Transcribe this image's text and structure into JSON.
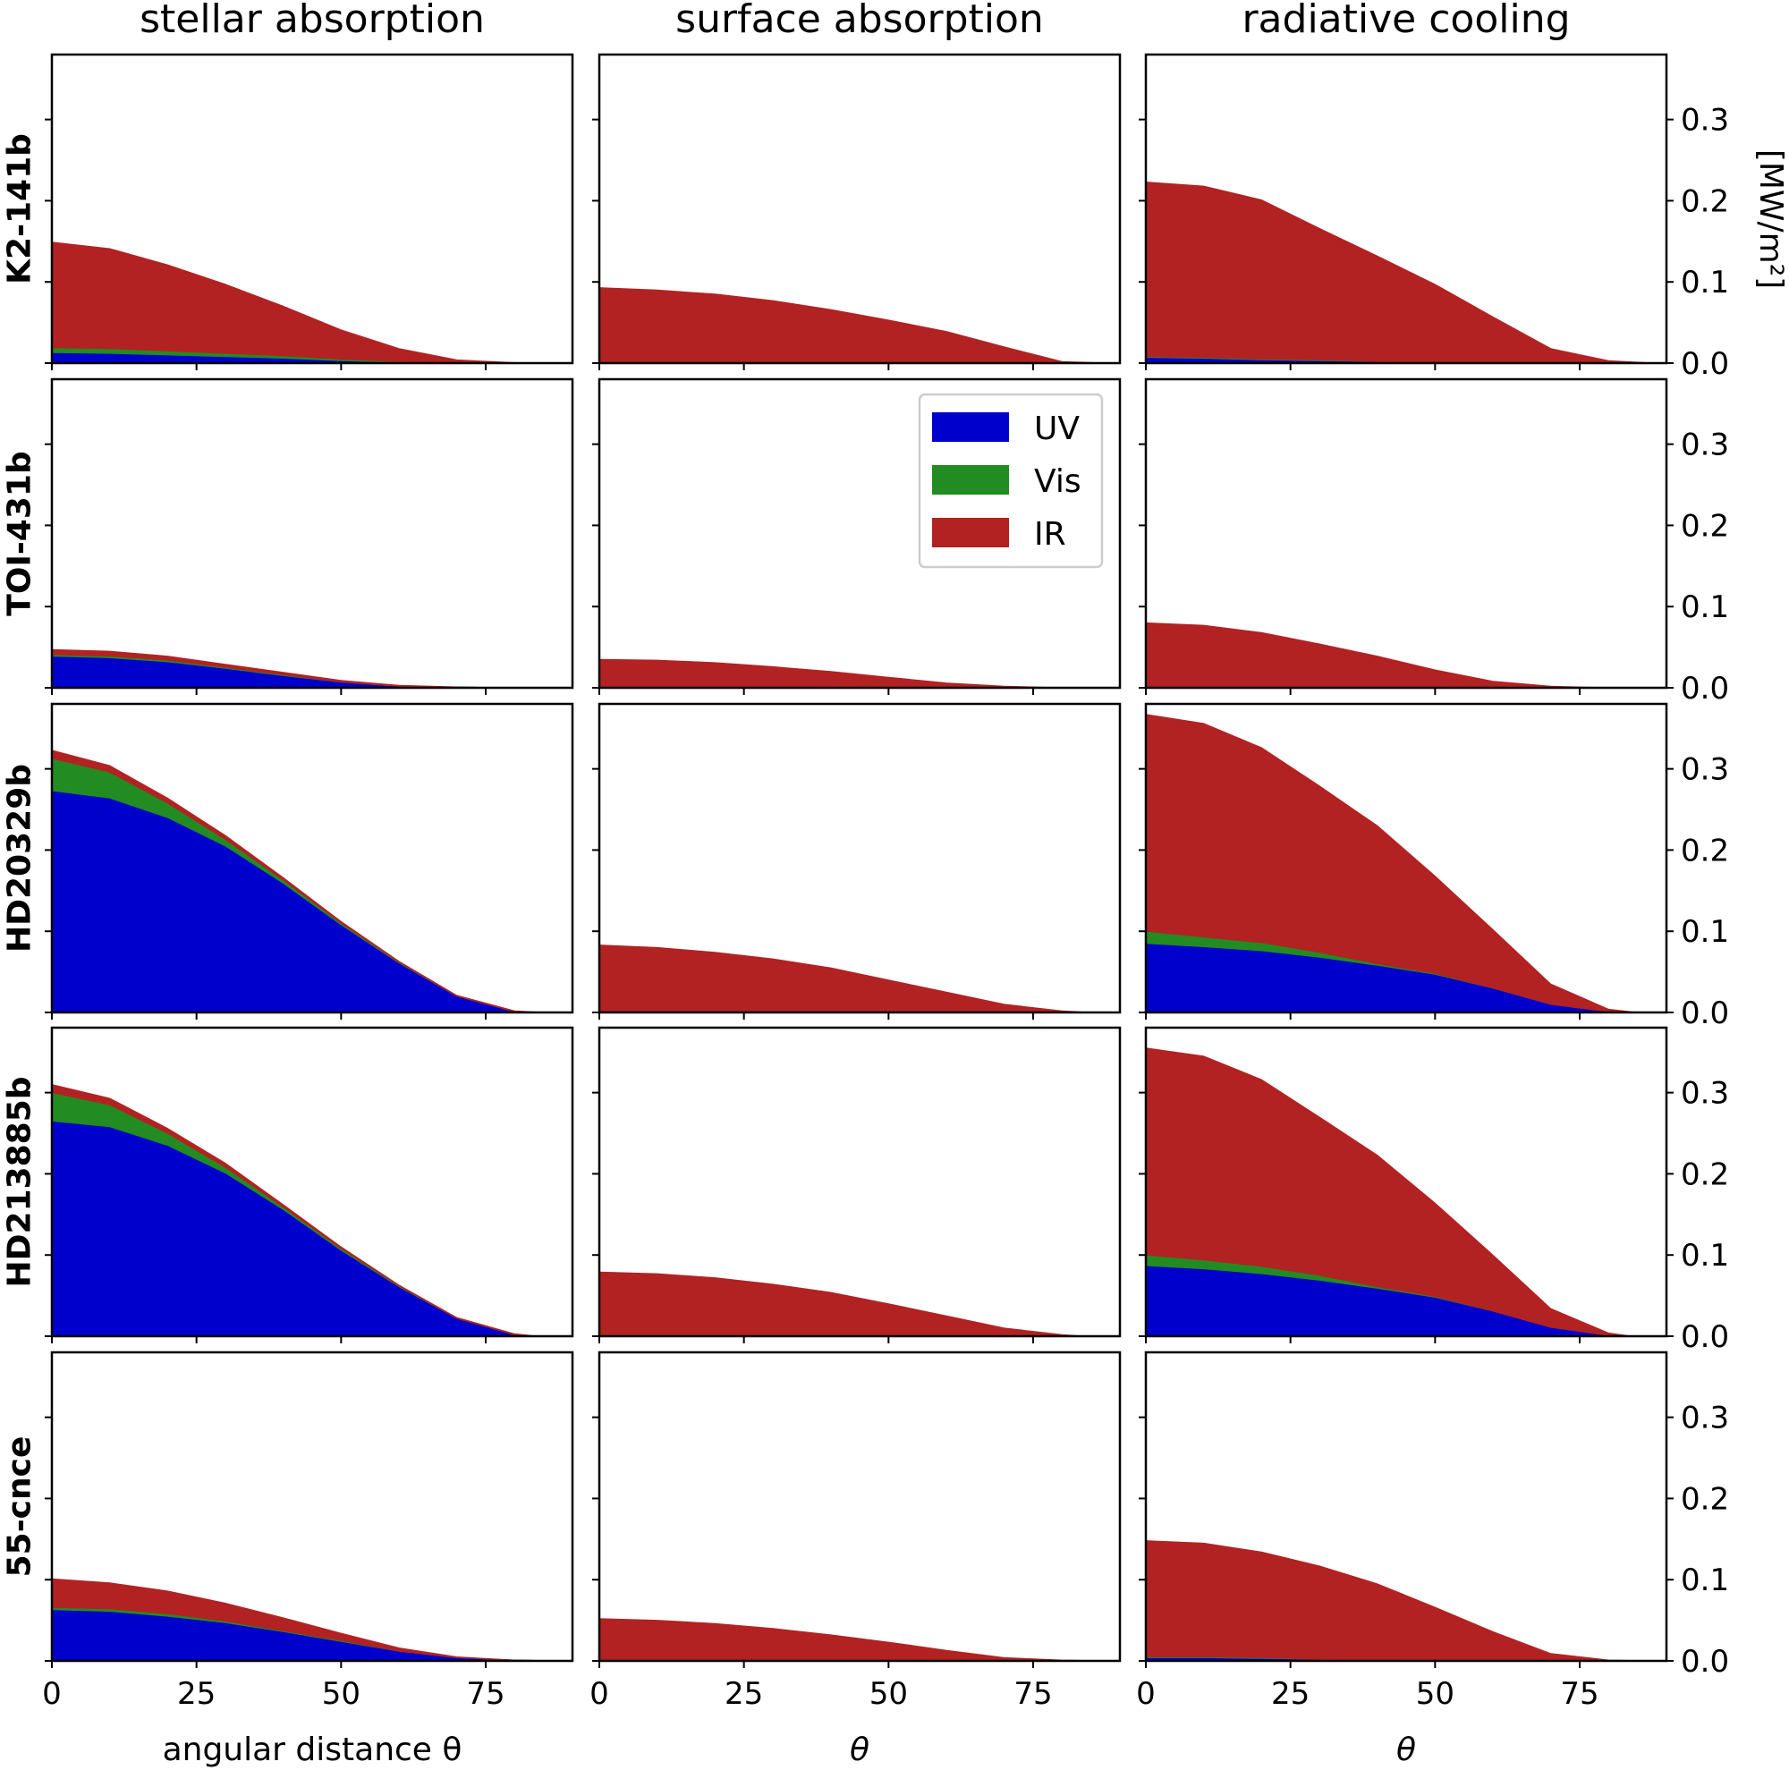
{
  "chart_data": {
    "type": "area",
    "layout": "grid 5 rows x 3 columns, shared axes",
    "columns": [
      "stellar absorption",
      "surface absorption",
      "radiative cooling"
    ],
    "rows": [
      "K2-141b",
      "TOI-431b",
      "HD20329b",
      "HD213885b",
      "55-cnce"
    ],
    "xlabels": [
      "angular distance θ",
      "θ",
      "θ"
    ],
    "ylabel": "[MW/m²]",
    "xlim": [
      0,
      90
    ],
    "ylim": [
      0,
      0.38
    ],
    "xticks": [
      "0",
      "25",
      "50",
      "75"
    ],
    "yticks": [
      "0.0",
      "0.1",
      "0.2",
      "0.3"
    ],
    "stack_order": [
      "UV",
      "Vis",
      "IR"
    ],
    "legend": [
      {
        "name": "UV",
        "color": "#0000cd"
      },
      {
        "name": "Vis",
        "color": "#228b22"
      },
      {
        "name": "IR",
        "color": "#b22222"
      }
    ],
    "legend_location": "row 2, middle column, upper right",
    "panels": [
      {
        "row": "K2-141b",
        "col": "stellar absorption",
        "theta": [
          0,
          10,
          20,
          30,
          40,
          50,
          60,
          70,
          80,
          88
        ],
        "UV": [
          0.013,
          0.012,
          0.01,
          0.008,
          0.006,
          0.003,
          0.001,
          0.0,
          0.0,
          0.0
        ],
        "Vis": [
          0.006,
          0.006,
          0.005,
          0.004,
          0.003,
          0.002,
          0.001,
          0.0,
          0.0,
          0.0
        ],
        "IR": [
          0.13,
          0.123,
          0.106,
          0.085,
          0.061,
          0.036,
          0.016,
          0.004,
          0.0005,
          0.0
        ]
      },
      {
        "row": "K2-141b",
        "col": "surface absorption",
        "theta": [
          0,
          10,
          20,
          30,
          40,
          50,
          60,
          70,
          80,
          88
        ],
        "UV": [
          0,
          0,
          0,
          0,
          0,
          0,
          0,
          0,
          0,
          0
        ],
        "Vis": [
          0,
          0,
          0,
          0,
          0,
          0,
          0,
          0,
          0,
          0
        ],
        "IR": [
          0.093,
          0.09,
          0.085,
          0.077,
          0.066,
          0.053,
          0.039,
          0.02,
          0.002,
          0.0
        ]
      },
      {
        "row": "K2-141b",
        "col": "radiative cooling",
        "theta": [
          0,
          10,
          20,
          30,
          40,
          50,
          60,
          70,
          80,
          88
        ],
        "UV": [
          0.007,
          0.006,
          0.004,
          0.003,
          0.002,
          0.001,
          0.0,
          0.0,
          0.0,
          0.0
        ],
        "Vis": [
          0.001,
          0.001,
          0.001,
          0.001,
          0.0,
          0.0,
          0.0,
          0.0,
          0.0,
          0.0
        ],
        "IR": [
          0.215,
          0.211,
          0.196,
          0.162,
          0.13,
          0.096,
          0.057,
          0.018,
          0.003,
          0.0
        ]
      },
      {
        "row": "TOI-431b",
        "col": "stellar absorption",
        "theta": [
          0,
          10,
          20,
          30,
          40,
          50,
          60,
          70,
          80,
          88
        ],
        "UV": [
          0.039,
          0.037,
          0.032,
          0.024,
          0.015,
          0.007,
          0.002,
          0.001,
          0.0,
          0.0
        ],
        "Vis": [
          0.002,
          0.002,
          0.002,
          0.001,
          0.001,
          0.0,
          0.0,
          0.0,
          0.0,
          0.0
        ],
        "IR": [
          0.006,
          0.006,
          0.005,
          0.004,
          0.003,
          0.002,
          0.001,
          0.0,
          0.0,
          0.0
        ]
      },
      {
        "row": "TOI-431b",
        "col": "surface absorption",
        "theta": [
          0,
          10,
          20,
          30,
          40,
          50,
          60,
          70,
          80,
          88
        ],
        "UV": [
          0,
          0,
          0,
          0,
          0,
          0,
          0,
          0,
          0,
          0
        ],
        "Vis": [
          0,
          0,
          0,
          0,
          0,
          0,
          0,
          0,
          0,
          0
        ],
        "IR": [
          0.035,
          0.034,
          0.031,
          0.026,
          0.02,
          0.013,
          0.006,
          0.002,
          0.0,
          0.0
        ]
      },
      {
        "row": "TOI-431b",
        "col": "radiative cooling",
        "theta": [
          0,
          10,
          20,
          30,
          40,
          50,
          60,
          70,
          80,
          88
        ],
        "UV": [
          0,
          0,
          0,
          0,
          0,
          0,
          0,
          0,
          0,
          0
        ],
        "Vis": [
          0,
          0,
          0,
          0,
          0,
          0,
          0,
          0,
          0,
          0
        ],
        "IR": [
          0.08,
          0.077,
          0.068,
          0.054,
          0.039,
          0.022,
          0.008,
          0.002,
          0.0,
          0.0
        ]
      },
      {
        "row": "HD20329b",
        "col": "stellar absorption",
        "theta": [
          0,
          10,
          20,
          30,
          40,
          50,
          60,
          70,
          80,
          85
        ],
        "UV": [
          0.273,
          0.264,
          0.24,
          0.205,
          0.159,
          0.108,
          0.061,
          0.02,
          0.001,
          0.0
        ],
        "Vis": [
          0.04,
          0.032,
          0.018,
          0.008,
          0.004,
          0.002,
          0.001,
          0.0,
          0.0,
          0.0
        ],
        "IR": [
          0.01,
          0.008,
          0.006,
          0.005,
          0.003,
          0.002,
          0.001,
          0.001,
          0.001,
          0.0
        ]
      },
      {
        "row": "HD20329b",
        "col": "surface absorption",
        "theta": [
          0,
          10,
          20,
          30,
          40,
          50,
          60,
          70,
          80,
          85
        ],
        "UV": [
          0,
          0,
          0,
          0,
          0,
          0,
          0,
          0,
          0,
          0
        ],
        "Vis": [
          0,
          0,
          0,
          0,
          0,
          0,
          0,
          0,
          0,
          0
        ],
        "IR": [
          0.083,
          0.08,
          0.074,
          0.066,
          0.055,
          0.04,
          0.025,
          0.01,
          0.002,
          0.0
        ]
      },
      {
        "row": "HD20329b",
        "col": "radiative cooling",
        "theta": [
          0,
          10,
          20,
          30,
          40,
          50,
          60,
          70,
          80,
          85
        ],
        "UV": [
          0.085,
          0.081,
          0.076,
          0.068,
          0.058,
          0.047,
          0.03,
          0.01,
          0.001,
          0.0
        ],
        "Vis": [
          0.015,
          0.012,
          0.01,
          0.006,
          0.002,
          0.001,
          0.0,
          0.0,
          0.0,
          0.0
        ],
        "IR": [
          0.267,
          0.263,
          0.24,
          0.205,
          0.17,
          0.12,
          0.072,
          0.025,
          0.003,
          0.0
        ]
      },
      {
        "row": "HD213885b",
        "col": "stellar absorption",
        "theta": [
          0,
          10,
          20,
          30,
          40,
          50,
          60,
          70,
          80,
          84
        ],
        "UV": [
          0.265,
          0.258,
          0.235,
          0.201,
          0.156,
          0.106,
          0.061,
          0.022,
          0.002,
          0.0
        ],
        "Vis": [
          0.035,
          0.027,
          0.015,
          0.007,
          0.003,
          0.002,
          0.001,
          0.0,
          0.0,
          0.0
        ],
        "IR": [
          0.01,
          0.008,
          0.006,
          0.005,
          0.003,
          0.002,
          0.001,
          0.001,
          0.001,
          0.0
        ]
      },
      {
        "row": "HD213885b",
        "col": "surface absorption",
        "theta": [
          0,
          10,
          20,
          30,
          40,
          50,
          60,
          70,
          80,
          84
        ],
        "UV": [
          0,
          0,
          0,
          0,
          0,
          0,
          0,
          0,
          0,
          0
        ],
        "Vis": [
          0,
          0,
          0,
          0,
          0,
          0,
          0,
          0,
          0,
          0
        ],
        "IR": [
          0.079,
          0.077,
          0.072,
          0.064,
          0.054,
          0.04,
          0.025,
          0.01,
          0.002,
          0.0
        ]
      },
      {
        "row": "HD213885b",
        "col": "radiative cooling",
        "theta": [
          0,
          10,
          20,
          30,
          40,
          50,
          60,
          70,
          80,
          84
        ],
        "UV": [
          0.087,
          0.083,
          0.077,
          0.069,
          0.059,
          0.048,
          0.031,
          0.011,
          0.001,
          0.0
        ],
        "Vis": [
          0.013,
          0.011,
          0.009,
          0.006,
          0.002,
          0.001,
          0.0,
          0.0,
          0.0,
          0.0
        ],
        "IR": [
          0.255,
          0.251,
          0.23,
          0.195,
          0.162,
          0.115,
          0.069,
          0.023,
          0.003,
          0.0
        ]
      },
      {
        "row": "55-cnce",
        "col": "stellar absorption",
        "theta": [
          0,
          10,
          20,
          30,
          40,
          50,
          60,
          70,
          80,
          88
        ],
        "UV": [
          0.063,
          0.061,
          0.055,
          0.047,
          0.036,
          0.024,
          0.012,
          0.004,
          0.001,
          0.0
        ],
        "Vis": [
          0.003,
          0.003,
          0.003,
          0.002,
          0.001,
          0.001,
          0.0,
          0.0,
          0.0,
          0.0
        ],
        "IR": [
          0.035,
          0.032,
          0.028,
          0.022,
          0.016,
          0.009,
          0.004,
          0.001,
          0.0,
          0.0
        ]
      },
      {
        "row": "55-cnce",
        "col": "surface absorption",
        "theta": [
          0,
          10,
          20,
          30,
          40,
          50,
          60,
          70,
          80,
          88
        ],
        "UV": [
          0,
          0,
          0,
          0,
          0,
          0,
          0,
          0,
          0,
          0
        ],
        "Vis": [
          0,
          0,
          0,
          0,
          0,
          0,
          0,
          0,
          0,
          0
        ],
        "IR": [
          0.052,
          0.05,
          0.046,
          0.04,
          0.032,
          0.023,
          0.013,
          0.004,
          0.001,
          0.0
        ]
      },
      {
        "row": "55-cnce",
        "col": "radiative cooling",
        "theta": [
          0,
          10,
          20,
          30,
          40,
          50,
          60,
          70,
          80,
          88
        ],
        "UV": [
          0.004,
          0.004,
          0.003,
          0.002,
          0.001,
          0.0,
          0.0,
          0.0,
          0.0,
          0.0
        ],
        "Vis": [
          0.001,
          0.001,
          0.001,
          0.0,
          0.0,
          0.0,
          0.0,
          0.0,
          0.0,
          0.0
        ],
        "IR": [
          0.143,
          0.14,
          0.13,
          0.115,
          0.094,
          0.066,
          0.036,
          0.009,
          0.001,
          0.0
        ]
      }
    ]
  }
}
